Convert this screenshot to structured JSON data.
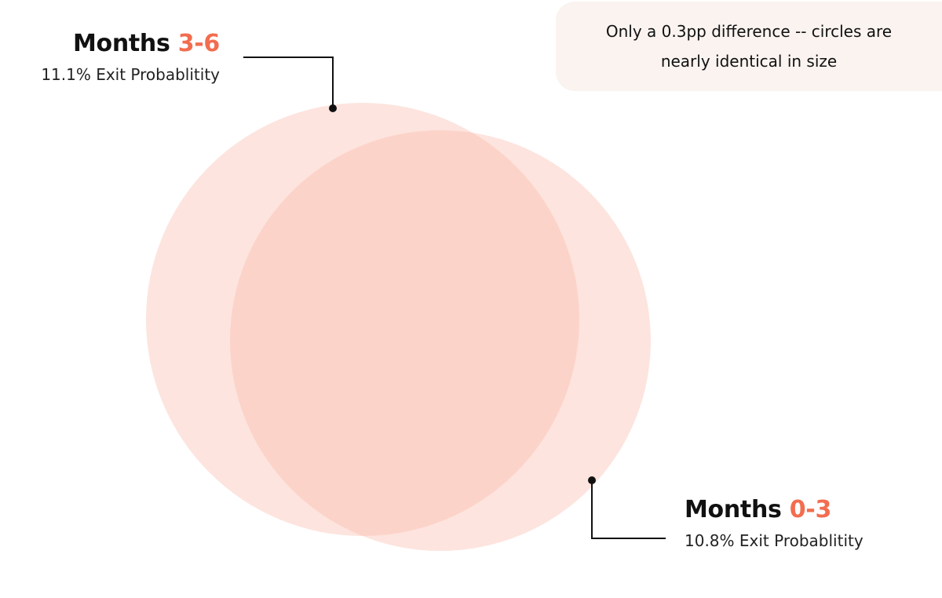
{
  "callout": {
    "text": "Only a 0.3pp difference -- circles are nearly identical in size"
  },
  "groups": [
    {
      "id": "months-3-6",
      "title_prefix": "Months ",
      "range": "3-6",
      "probability_label": "11.1% Exit Probablitity",
      "exit_probability": 11.1
    },
    {
      "id": "months-0-3",
      "title_prefix": "Months ",
      "range": "0-3",
      "probability_label": "10.8% Exit Probablitity",
      "exit_probability": 10.8
    }
  ],
  "colors": {
    "circle_fill": "#fbb7a9",
    "circle_opacity": 0.38,
    "accent": "#f26d4f",
    "text": "#111111",
    "callout_bg": "#faf3ef",
    "leader_line": "#111111"
  }
}
